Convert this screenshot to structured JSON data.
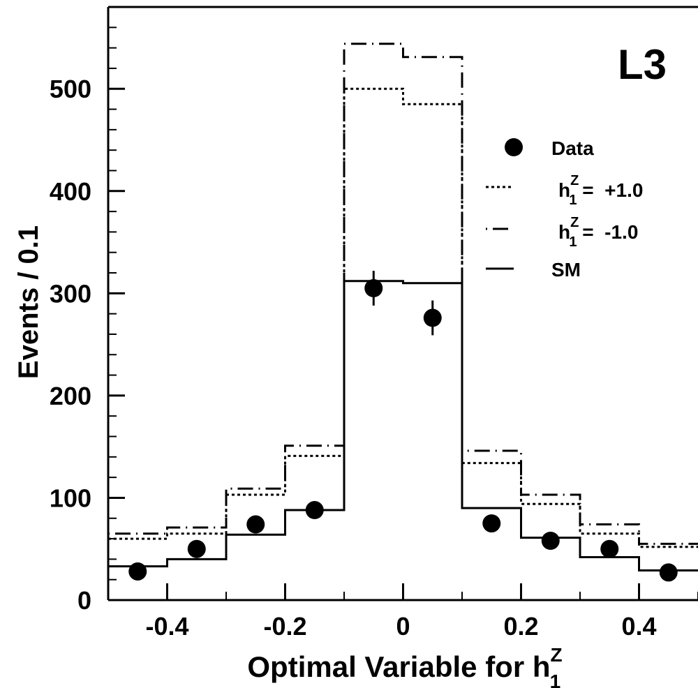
{
  "chart_data": {
    "type": "histogram",
    "experiment_label": "L3",
    "xlabel": "Optimal Variable for h",
    "xlabel_sup": "Z",
    "xlabel_sub": "1",
    "ylabel": "Events / 0.1",
    "xlim": [
      -0.5,
      0.5
    ],
    "ylim": [
      0,
      580
    ],
    "x_ticks": [
      -0.4,
      -0.2,
      0,
      0.2,
      0.4
    ],
    "x_tick_labels": [
      "-0.4",
      "-0.2",
      "0",
      "0.2",
      "0.4"
    ],
    "y_ticks": [
      0,
      100,
      200,
      300,
      400,
      500
    ],
    "y_tick_labels": [
      "0",
      "100",
      "200",
      "300",
      "400",
      "500"
    ],
    "bin_edges": [
      -0.5,
      -0.4,
      -0.3,
      -0.2,
      -0.1,
      0.0,
      0.1,
      0.2,
      0.3,
      0.4,
      0.5
    ],
    "series": [
      {
        "name": "Data",
        "style": "points",
        "x": [
          -0.45,
          -0.35,
          -0.25,
          -0.15,
          -0.05,
          0.05,
          0.15,
          0.25,
          0.35,
          0.45
        ],
        "values": [
          28,
          50,
          74,
          88,
          305,
          276,
          75,
          58,
          50,
          27
        ],
        "errors": [
          0,
          0,
          0,
          0,
          17,
          17,
          0,
          0,
          0,
          0
        ]
      },
      {
        "name": "h = +1.0",
        "style": "dotted",
        "values": [
          60,
          65,
          103,
          141,
          500,
          485,
          134,
          94,
          65,
          52
        ]
      },
      {
        "name": "h = -1.0",
        "style": "dash-dot",
        "values": [
          65,
          71,
          109,
          151,
          544,
          531,
          146,
          103,
          74,
          55
        ]
      },
      {
        "name": "SM",
        "style": "solid",
        "values": [
          33,
          40,
          64,
          88,
          312,
          310,
          90,
          61,
          42,
          29
        ]
      }
    ],
    "legend": {
      "position": "top-right",
      "entries": [
        {
          "label": "Data",
          "marker": "dot"
        },
        {
          "label_pre": "h",
          "sup": "Z",
          "sub": "1",
          "label_post": " =  +1.0",
          "marker": "dotted"
        },
        {
          "label_pre": "h",
          "sup": "Z",
          "sub": "1",
          "label_post": " =  -1.0",
          "marker": "dash-dot"
        },
        {
          "label": "SM",
          "marker": "solid"
        }
      ]
    }
  }
}
